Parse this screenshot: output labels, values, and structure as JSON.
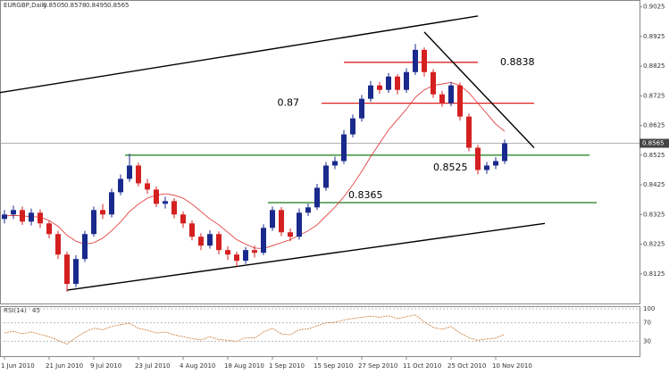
{
  "chart_data": {
    "type": "candlestick",
    "title": "EURGBP,Daily",
    "categories": [
      "1 Jun 2010",
      null,
      null,
      null,
      null,
      "21 Jun 2010",
      null,
      null,
      null,
      null,
      "9 Jul 2010",
      null,
      null,
      null,
      null,
      "23 Jul 2010",
      null,
      null,
      null,
      null,
      "4 Aug 2010",
      null,
      null,
      null,
      null,
      "18 Aug 2010",
      null,
      null,
      null,
      null,
      "1 Sep 2010",
      null,
      null,
      null,
      null,
      "15 Sep 2010",
      null,
      null,
      null,
      null,
      "27 Sep 2010",
      null,
      null,
      null,
      null,
      "11 Oct 2010",
      null,
      null,
      null,
      null,
      "25 Oct 2010",
      null,
      null,
      null,
      null,
      "10 Nov 2010",
      null
    ],
    "open": [
      0.831,
      0.8325,
      0.834,
      0.8301,
      0.8331,
      0.8295,
      0.8259,
      0.819,
      0.8091,
      0.8175,
      0.8259,
      0.834,
      0.8325,
      0.84,
      0.8445,
      0.849,
      0.843,
      0.8409,
      0.8361,
      0.837,
      0.8325,
      0.8295,
      0.825,
      0.822,
      0.8259,
      0.8205,
      0.819,
      0.8169,
      0.8205,
      0.8196,
      0.828,
      0.834,
      0.8265,
      0.825,
      0.8331,
      0.8349,
      0.8415,
      0.849,
      0.8505,
      0.8595,
      0.8649,
      0.8715,
      0.876,
      0.8745,
      0.879,
      0.8745,
      0.8805,
      0.888,
      0.8805,
      0.873,
      0.87,
      0.876,
      0.8655,
      0.855,
      0.8475,
      0.849,
      0.8505
    ],
    "high": [
      0.834,
      0.8355,
      0.8352,
      0.8345,
      0.8342,
      0.8305,
      0.827,
      0.82,
      0.8188,
      0.827,
      0.8352,
      0.836,
      0.8412,
      0.846,
      0.853,
      0.85,
      0.8445,
      0.842,
      0.8385,
      0.838,
      0.8335,
      0.8305,
      0.8262,
      0.8272,
      0.8268,
      0.8218,
      0.82,
      0.8215,
      0.822,
      0.8292,
      0.8352,
      0.835,
      0.8278,
      0.8345,
      0.8362,
      0.8428,
      0.8502,
      0.852,
      0.861,
      0.8662,
      0.8728,
      0.8775,
      0.8772,
      0.8802,
      0.8798,
      0.8818,
      0.89,
      0.8888,
      0.8815,
      0.8742,
      0.8772,
      0.877,
      0.8665,
      0.856,
      0.8502,
      0.8518,
      0.8578
    ],
    "low": [
      0.8295,
      0.831,
      0.829,
      0.8288,
      0.828,
      0.8245,
      0.8175,
      0.8065,
      0.808,
      0.8165,
      0.825,
      0.831,
      0.8315,
      0.839,
      0.8435,
      0.842,
      0.8395,
      0.835,
      0.8345,
      0.8312,
      0.828,
      0.8238,
      0.8205,
      0.821,
      0.819,
      0.8172,
      0.815,
      0.8158,
      0.818,
      0.8188,
      0.827,
      0.8252,
      0.8235,
      0.824,
      0.832,
      0.834,
      0.8405,
      0.8478,
      0.8495,
      0.8585,
      0.8638,
      0.8705,
      0.8732,
      0.8735,
      0.873,
      0.8735,
      0.8795,
      0.879,
      0.8718,
      0.8688,
      0.869,
      0.8642,
      0.8538,
      0.846,
      0.8462,
      0.8478,
      0.8495
    ],
    "close": [
      0.8325,
      0.834,
      0.8301,
      0.8331,
      0.8295,
      0.8259,
      0.819,
      0.8091,
      0.8175,
      0.8259,
      0.834,
      0.8325,
      0.84,
      0.8445,
      0.849,
      0.843,
      0.8409,
      0.8361,
      0.837,
      0.8325,
      0.8295,
      0.825,
      0.822,
      0.8259,
      0.8205,
      0.819,
      0.8169,
      0.8205,
      0.8196,
      0.828,
      0.834,
      0.8265,
      0.825,
      0.8331,
      0.8349,
      0.8415,
      0.849,
      0.8505,
      0.8595,
      0.8649,
      0.8715,
      0.876,
      0.8745,
      0.879,
      0.8745,
      0.8805,
      0.888,
      0.8805,
      0.873,
      0.87,
      0.876,
      0.8655,
      0.855,
      0.8475,
      0.849,
      0.8505,
      0.8565
    ],
    "up_color": "#1a2a8c",
    "down_color": "#d42020",
    "ma": {
      "color": "#e03030",
      "values": [
        0.832,
        0.8322,
        0.832,
        0.8318,
        0.8316,
        0.8305,
        0.8285,
        0.8255,
        0.8235,
        0.8225,
        0.823,
        0.8245,
        0.827,
        0.83,
        0.8335,
        0.836,
        0.838,
        0.839,
        0.8395,
        0.839,
        0.838,
        0.836,
        0.8335,
        0.831,
        0.829,
        0.8265,
        0.824,
        0.8225,
        0.8212,
        0.821,
        0.822,
        0.823,
        0.824,
        0.8255,
        0.827,
        0.829,
        0.832,
        0.835,
        0.8385,
        0.8425,
        0.847,
        0.852,
        0.8565,
        0.861,
        0.8645,
        0.868,
        0.872,
        0.8745,
        0.876,
        0.8765,
        0.877,
        0.876,
        0.8735,
        0.87,
        0.8665,
        0.863,
        0.8605
      ]
    },
    "ylim": [
      0.8025,
      0.9045
    ],
    "yticks": [
      0.8125,
      0.8225,
      0.8325,
      0.8425,
      0.8525,
      0.8625,
      0.8725,
      0.8825,
      0.8925,
      0.9025
    ],
    "levels": [
      {
        "value": 0.8838,
        "color": "#e02020"
      },
      {
        "value": 0.87,
        "color": "#e02020"
      },
      {
        "value": 0.8525,
        "color": "#2a8a2a"
      },
      {
        "value": 0.8365,
        "color": "#1f7a1f"
      }
    ],
    "trendlines": [
      {
        "color": "#000000",
        "x": [
          -0.5,
          53
        ],
        "y": [
          0.8736,
          0.8994
        ]
      },
      {
        "color": "#000000",
        "x": [
          7,
          60.5
        ],
        "y": [
          0.807,
          0.8295
        ]
      },
      {
        "color": "#000000",
        "x": [
          47,
          59.3
        ],
        "y": [
          0.894,
          0.855
        ]
      }
    ],
    "rsi": {
      "name": "RSI(14)",
      "color": "#c87830",
      "ylim": [
        0,
        100
      ],
      "yticks": [
        30,
        70,
        100
      ],
      "values": [
        48,
        52,
        46,
        50,
        45,
        40,
        32,
        24,
        38,
        50,
        58,
        55,
        62,
        66,
        69,
        58,
        54,
        48,
        50,
        44,
        40,
        36,
        33,
        40,
        34,
        32,
        30,
        38,
        37,
        50,
        58,
        46,
        44,
        55,
        57,
        63,
        70,
        71,
        76,
        79,
        82,
        84,
        82,
        85,
        79,
        83,
        87,
        72,
        60,
        56,
        62,
        48,
        38,
        32,
        35,
        37,
        45
      ]
    }
  }
}
